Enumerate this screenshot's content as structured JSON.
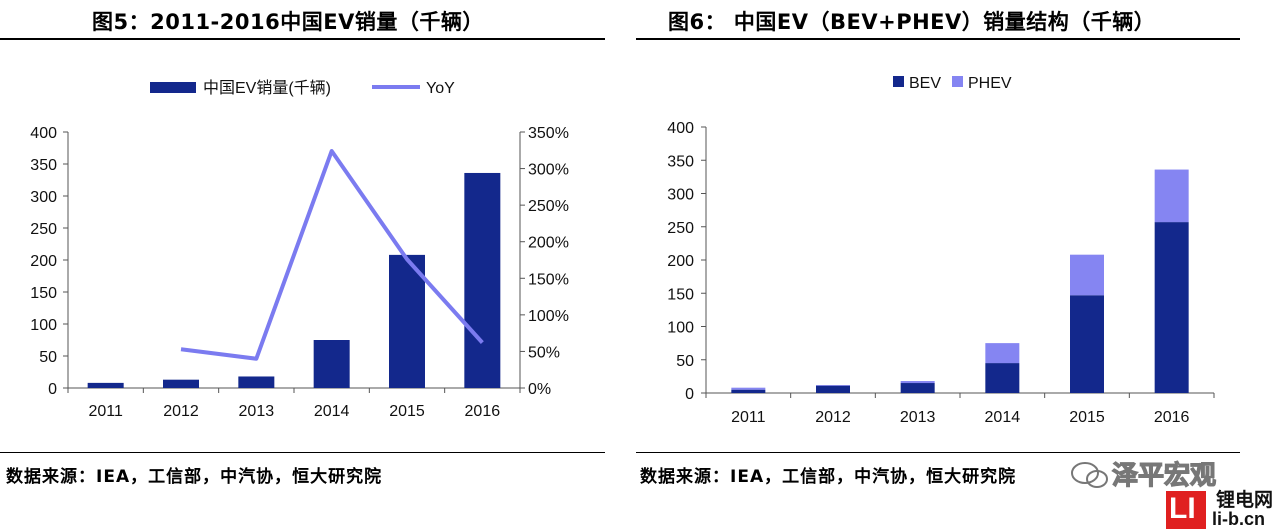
{
  "left": {
    "title": "图5：2011-2016中国EV销量（千辆）",
    "source": "数据来源：IEA，工信部，中汽协，恒大研究院"
  },
  "right": {
    "title": "图6：  中国EV（BEV+PHEV）销量结构（千辆）",
    "source": "数据来源：IEA，工信部，中汽协，恒大研究院"
  },
  "watermark": {
    "brand": "泽平宏观",
    "site_name": "锂电网",
    "site_url": "li-b.cn",
    "logo_text": "LI"
  },
  "colors": {
    "navy": "#13288c",
    "line": "#7b7bf0",
    "phev": "#8585f2",
    "logo_red": "#e02020"
  },
  "chart_data": [
    {
      "type": "bar",
      "categories": [
        "2011",
        "2012",
        "2013",
        "2014",
        "2015",
        "2016"
      ],
      "series": [
        {
          "name": "中国EV销量(千辆)",
          "type": "bar",
          "axis": "left",
          "values": [
            8,
            13,
            18,
            75,
            208,
            336
          ]
        },
        {
          "name": "YoY",
          "type": "line",
          "axis": "right",
          "values": [
            null,
            0.53,
            0.4,
            3.24,
            1.76,
            0.62
          ]
        }
      ],
      "y_left": {
        "min": 0,
        "max": 400,
        "ticks": [
          0,
          50,
          100,
          150,
          200,
          250,
          300,
          350,
          400
        ]
      },
      "y_right": {
        "min": 0,
        "max": 3.5,
        "ticks": [
          "0%",
          "50%",
          "100%",
          "150%",
          "200%",
          "250%",
          "300%",
          "350%"
        ]
      },
      "legend_position": "top",
      "grid": false
    },
    {
      "type": "bar",
      "stacked": true,
      "categories": [
        "2011",
        "2012",
        "2013",
        "2014",
        "2015",
        "2016"
      ],
      "series": [
        {
          "name": "BEV",
          "values": [
            5,
            11,
            15,
            45,
            147,
            257
          ]
        },
        {
          "name": "PHEV",
          "values": [
            3,
            1,
            3,
            30,
            61,
            79
          ]
        }
      ],
      "y": {
        "min": 0,
        "max": 400,
        "ticks": [
          0,
          50,
          100,
          150,
          200,
          250,
          300,
          350,
          400
        ]
      },
      "legend_position": "top",
      "grid": false
    }
  ]
}
